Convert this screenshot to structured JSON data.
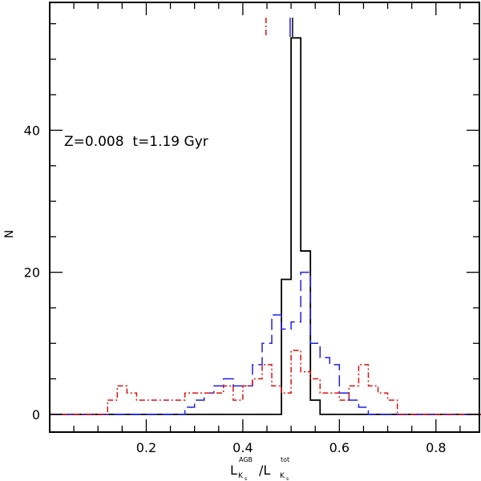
{
  "chart_data": {
    "type": "line",
    "title": "",
    "xlabel_main": "L",
    "xlabel_num_sub": "K",
    "xlabel_num_subsub": "s",
    "xlabel_num_sup": "AGB",
    "xlabel_sep": "/L",
    "xlabel_den_sub": "K",
    "xlabel_den_subsub": "s",
    "xlabel_den_sup": "tot",
    "ylabel": "N",
    "annotation": "Z=0.008  t=1.19 Gyr",
    "xlim": [
      0,
      0.89
    ],
    "ylim": [
      -2.5,
      58
    ],
    "x_ticks": [
      0.2,
      0.4,
      0.6,
      0.8
    ],
    "x_tick_labels": [
      "0.2",
      "0.4",
      "0.6",
      "0.8"
    ],
    "x_minor_step": 0.05,
    "y_ticks": [
      0,
      20,
      40
    ],
    "y_tick_labels": [
      "0",
      "20",
      "40"
    ],
    "y_minor_step": 5,
    "bin_width": 0.02,
    "series": [
      {
        "color": "#000000",
        "style": "solid",
        "x_start": 0.0,
        "values": [
          0,
          0,
          0,
          0,
          0,
          0,
          0,
          0,
          0,
          0,
          0,
          0,
          0,
          0,
          0,
          0,
          0,
          0,
          0,
          0,
          0,
          0,
          0,
          0,
          19,
          53,
          23,
          2,
          0,
          0,
          0,
          0,
          0,
          0,
          0,
          0,
          0,
          0,
          0,
          0,
          0,
          0,
          0,
          0,
          0
        ]
      },
      {
        "color": "#1f1fe6",
        "style": "dashed",
        "x_start": 0.0,
        "values": [
          0,
          0,
          0,
          0,
          0,
          0,
          0,
          0,
          0,
          0,
          0,
          0,
          0,
          0,
          1,
          2,
          3,
          4,
          5,
          4,
          4,
          7,
          10,
          14,
          12,
          13,
          20,
          10,
          8,
          7,
          3,
          2,
          1,
          0,
          0,
          0,
          0,
          0,
          0,
          0,
          0,
          0,
          0,
          0,
          0
        ]
      },
      {
        "color": "#e01010",
        "style": "dashdot",
        "x_start": 0.0,
        "values": [
          0,
          0,
          0,
          0,
          0,
          0,
          2,
          4,
          3,
          2,
          2,
          2,
          2,
          2,
          3,
          3,
          3,
          3,
          4,
          2,
          4,
          5,
          7,
          4,
          3,
          9,
          6,
          5,
          3,
          3,
          2,
          4,
          7,
          4,
          3,
          2,
          0,
          0,
          0,
          0,
          0,
          0,
          0,
          0,
          0
        ]
      }
    ],
    "markers": [
      {
        "x": 0.448,
        "color": "#e01010",
        "style": "dashdot"
      },
      {
        "x": 0.498,
        "color": "#1f1fe6",
        "style": "solid"
      },
      {
        "x": 0.503,
        "color": "#000000",
        "style": "solid"
      }
    ]
  }
}
